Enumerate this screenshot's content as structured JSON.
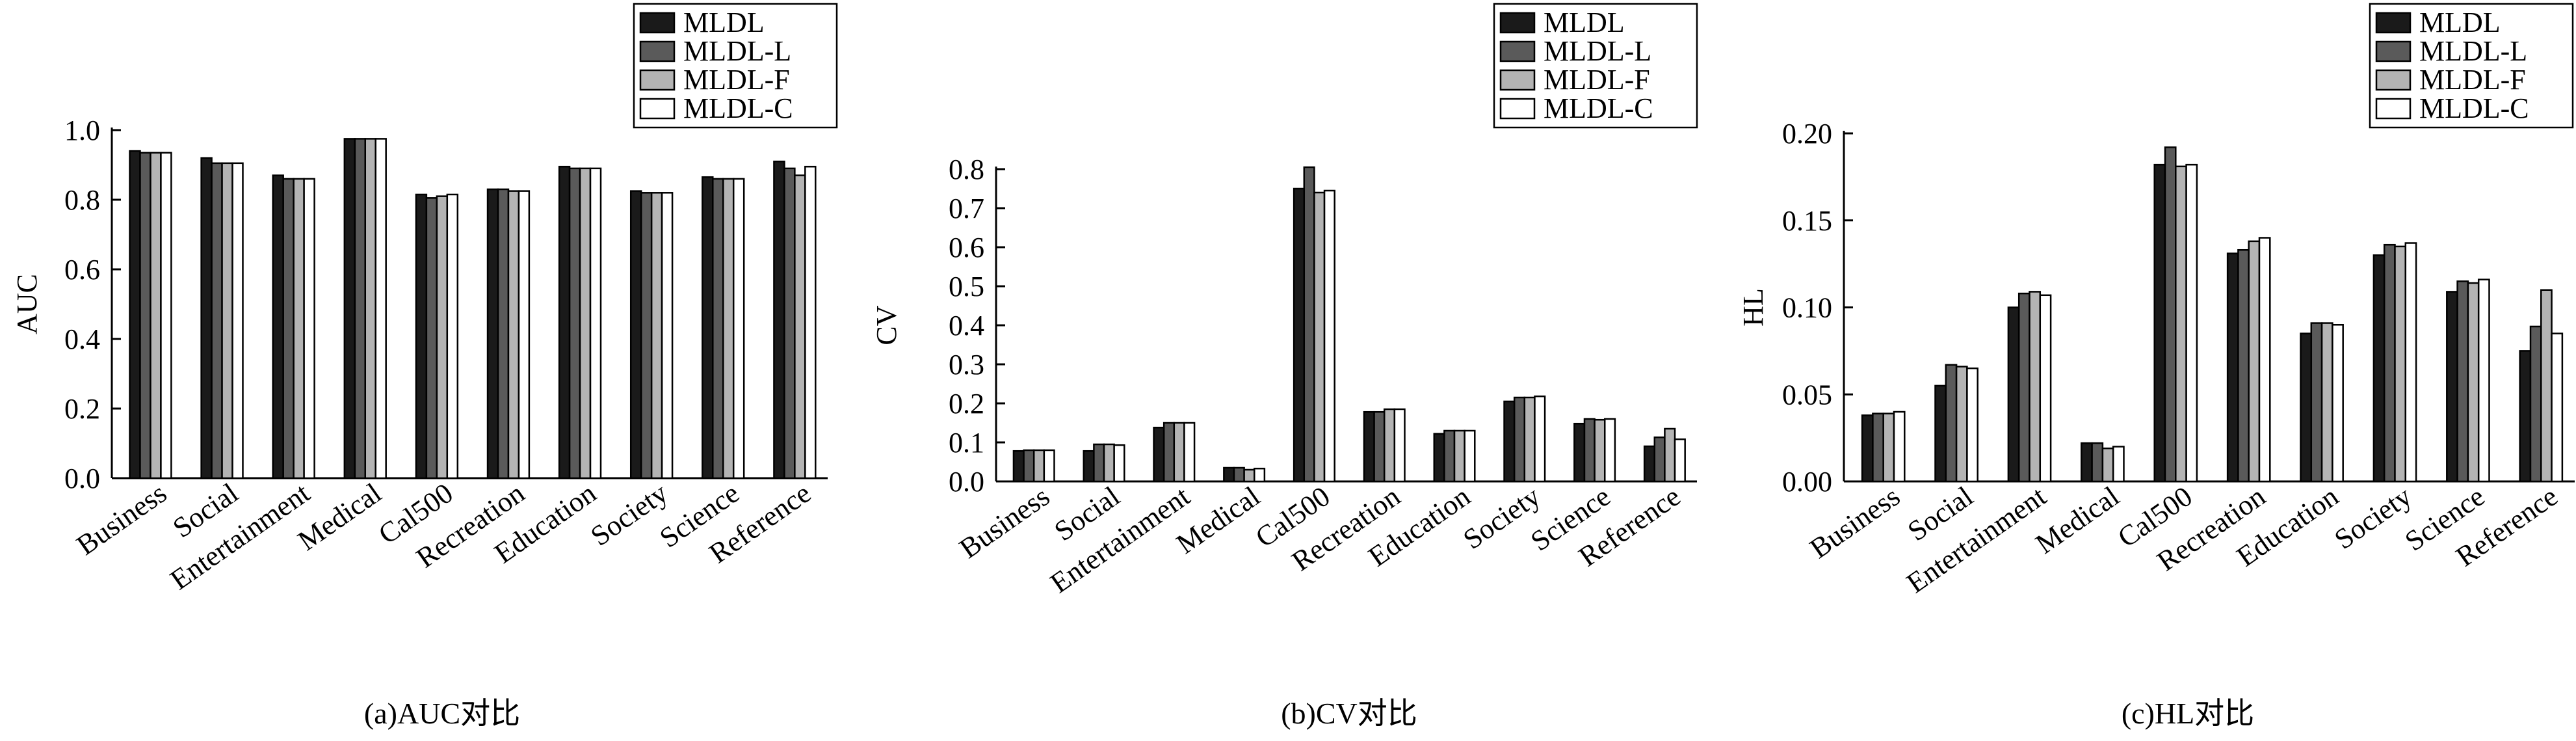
{
  "series_names": [
    "MLDL",
    "MLDL-L",
    "MLDL-F",
    "MLDL-C"
  ],
  "series_colors": [
    "#1a1a1a",
    "#5a5a5a",
    "#b4b4b4",
    "#ffffff"
  ],
  "chart_data": [
    {
      "type": "bar",
      "caption": "(a)AUC对比",
      "ylabel": "AUC",
      "xlabel": "",
      "ylim": [
        0,
        1.0
      ],
      "yticks": [
        "0.0",
        "0.2",
        "0.4",
        "0.6",
        "0.8",
        "1.0"
      ],
      "categories": [
        "Business",
        "Social",
        "Entertainment",
        "Medical",
        "Cal500",
        "Recreation",
        "Education",
        "Society",
        "Science",
        "Reference"
      ],
      "legend": "top-right",
      "grid": false,
      "series": [
        {
          "name": "MLDL",
          "values": [
            0.94,
            0.92,
            0.87,
            0.975,
            0.815,
            0.83,
            0.895,
            0.825,
            0.865,
            0.91
          ]
        },
        {
          "name": "MLDL-L",
          "values": [
            0.935,
            0.905,
            0.86,
            0.975,
            0.805,
            0.83,
            0.89,
            0.82,
            0.86,
            0.89
          ]
        },
        {
          "name": "MLDL-F",
          "values": [
            0.935,
            0.905,
            0.86,
            0.975,
            0.81,
            0.825,
            0.89,
            0.82,
            0.86,
            0.87
          ]
        },
        {
          "name": "MLDL-C",
          "values": [
            0.935,
            0.905,
            0.86,
            0.975,
            0.815,
            0.825,
            0.89,
            0.82,
            0.86,
            0.895
          ]
        }
      ]
    },
    {
      "type": "bar",
      "caption": "(b)CV对比",
      "ylabel": "CV",
      "xlabel": "",
      "ylim": [
        0,
        0.8
      ],
      "yticks": [
        "0.0",
        "0.1",
        "0.2",
        "0.3",
        "0.4",
        "0.5",
        "0.6",
        "0.7",
        "0.8"
      ],
      "categories": [
        "Business",
        "Social",
        "Entertainment",
        "Medical",
        "Cal500",
        "Recreation",
        "Education",
        "Society",
        "Science",
        "Reference"
      ],
      "legend": "top-right",
      "grid": false,
      "series": [
        {
          "name": "MLDL",
          "values": [
            0.078,
            0.078,
            0.138,
            0.035,
            0.75,
            0.178,
            0.122,
            0.205,
            0.148,
            0.09
          ]
        },
        {
          "name": "MLDL-L",
          "values": [
            0.08,
            0.095,
            0.15,
            0.035,
            0.805,
            0.178,
            0.13,
            0.215,
            0.16,
            0.113
          ]
        },
        {
          "name": "MLDL-F",
          "values": [
            0.08,
            0.095,
            0.15,
            0.03,
            0.74,
            0.185,
            0.13,
            0.215,
            0.158,
            0.135
          ]
        },
        {
          "name": "MLDL-C",
          "values": [
            0.08,
            0.093,
            0.15,
            0.033,
            0.745,
            0.185,
            0.13,
            0.218,
            0.16,
            0.108
          ]
        }
      ]
    },
    {
      "type": "bar",
      "caption": "(c)HL对比",
      "ylabel": "HL",
      "xlabel": "",
      "ylim": [
        0,
        0.2
      ],
      "yticks": [
        "0.00",
        "0.05",
        "0.10",
        "0.15",
        "0.20"
      ],
      "categories": [
        "Business",
        "Social",
        "Entertainment",
        "Medical",
        "Cal500",
        "Recreation",
        "Education",
        "Society",
        "Science",
        "Reference"
      ],
      "legend": "top-right",
      "grid": false,
      "series": [
        {
          "name": "MLDL",
          "values": [
            0.038,
            0.055,
            0.1,
            0.022,
            0.182,
            0.131,
            0.085,
            0.13,
            0.109,
            0.075
          ]
        },
        {
          "name": "MLDL-L",
          "values": [
            0.039,
            0.067,
            0.108,
            0.022,
            0.192,
            0.133,
            0.091,
            0.136,
            0.115,
            0.089
          ]
        },
        {
          "name": "MLDL-F",
          "values": [
            0.039,
            0.066,
            0.109,
            0.019,
            0.181,
            0.138,
            0.091,
            0.135,
            0.114,
            0.11
          ]
        },
        {
          "name": "MLDL-C",
          "values": [
            0.04,
            0.065,
            0.107,
            0.02,
            0.182,
            0.14,
            0.09,
            0.137,
            0.116,
            0.085
          ]
        }
      ]
    }
  ]
}
